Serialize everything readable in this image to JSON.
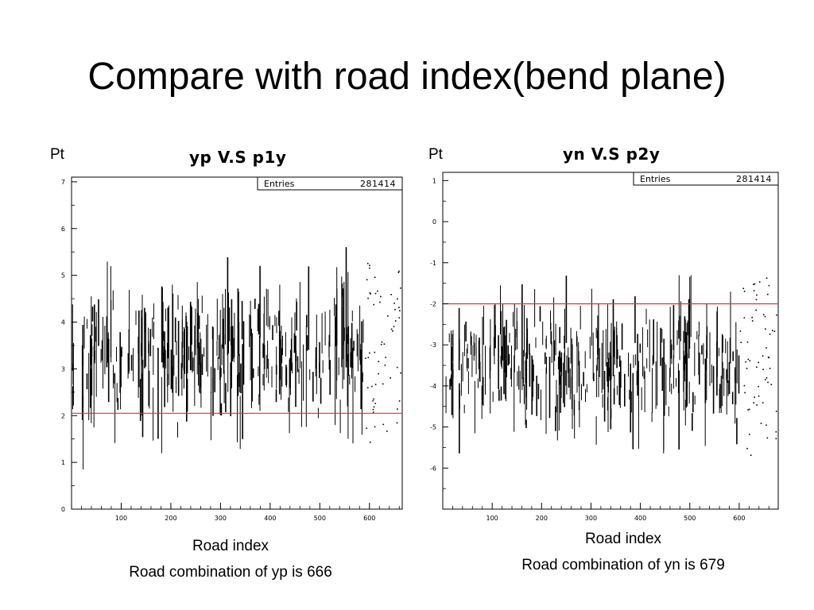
{
  "slide": {
    "title": "Compare with road index(bend plane)"
  },
  "chart_data": [
    {
      "type": "scatter",
      "title": "yp V.S p1y",
      "ylabel": "Pt",
      "xlabel": "Road index",
      "caption": "Road combination of yp is 666",
      "stats": {
        "label": "Entries",
        "value": "281414"
      },
      "xlim": [
        0,
        666
      ],
      "ylim": [
        0,
        7.1
      ],
      "xticks": [
        100,
        200,
        300,
        400,
        500,
        600
      ],
      "yticks": [
        0,
        1,
        2,
        3,
        4,
        5,
        6,
        7
      ],
      "cut_line": {
        "y": 2.05,
        "color": "#e53030"
      },
      "band": {
        "center": 3.3,
        "spread": 1.3,
        "max_x": 590
      },
      "marker_color": "#000000"
    },
    {
      "type": "scatter",
      "title": "yn V.S p2y",
      "ylabel": "Pt",
      "xlabel": "Road index",
      "caption": "Road combination of yn is 679",
      "stats": {
        "label": "Entries",
        "value": "281414"
      },
      "xlim": [
        0,
        679
      ],
      "ylim": [
        -7.0,
        1.2
      ],
      "xticks": [
        100,
        200,
        300,
        400,
        500,
        600
      ],
      "yticks": [
        1,
        0,
        -1,
        -2,
        -3,
        -4,
        -5,
        -6
      ],
      "cut_line": {
        "y": -2.0,
        "color": "#e53030"
      },
      "band": {
        "center": -3.5,
        "spread": 1.4,
        "max_x": 600
      },
      "marker_color": "#000000"
    }
  ]
}
